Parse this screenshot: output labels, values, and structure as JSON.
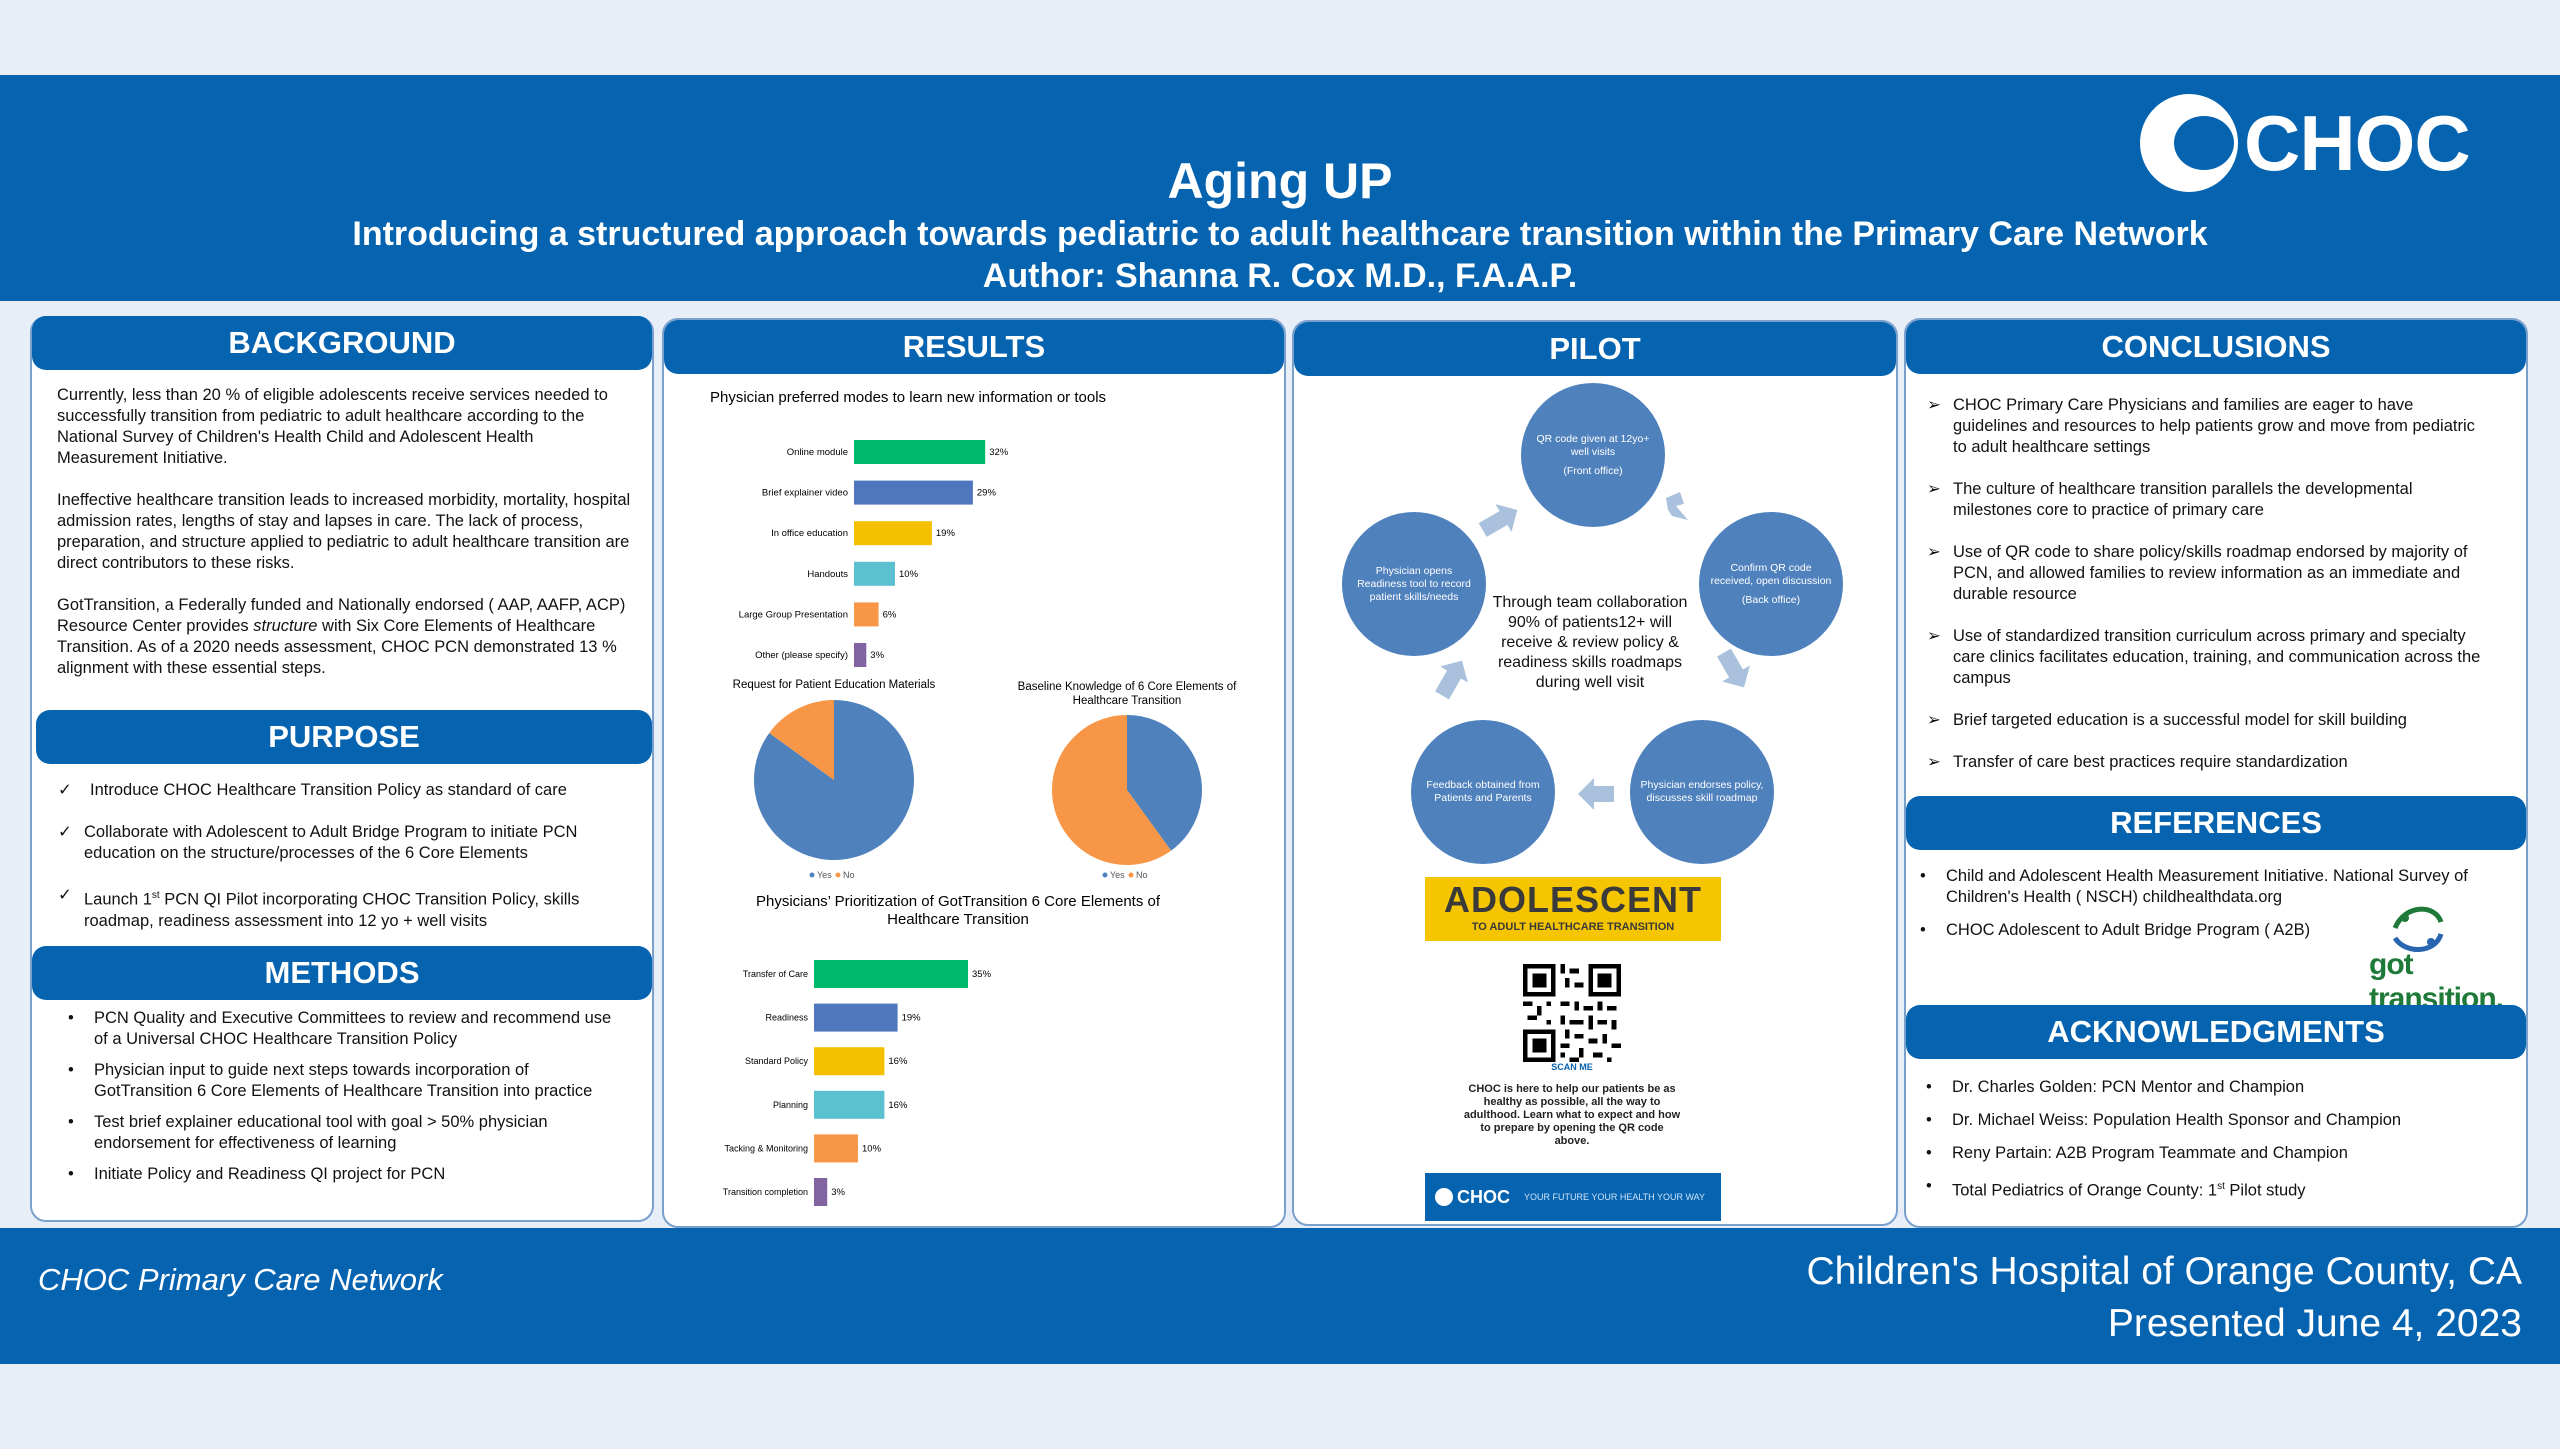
{
  "header": {
    "title": "Aging UP",
    "subtitle": "Introducing a structured approach towards pediatric to adult healthcare transition within the Primary Care Network",
    "author": "Author: Shanna R. Cox M.D., F.A.A.P.",
    "logo_text": "CHOC"
  },
  "colors": {
    "primary_blue": "#0563b0",
    "green": "#00b96b",
    "blue": "#4f77be",
    "gold": "#f5c000",
    "teal": "#5bc0d0",
    "orange": "#f79646",
    "purple": "#8064a2"
  },
  "background": {
    "heading": "BACKGROUND",
    "p1": "Currently, less than 20 % of eligible adolescents receive services needed to successfully transition from pediatric to adult healthcare according to the National Survey of Children's Health Child and Adolescent Health Measurement Initiative.",
    "p2": "Ineffective healthcare transition leads to increased morbidity, mortality, hospital admission rates, lengths of stay and lapses in care.  The lack of process, preparation, and structure applied to pediatric to adult healthcare transition are direct contributors to these risks.",
    "p3_a": "GotTransition, a Federally funded and Nationally endorsed ( AAP, AAFP, ACP) Resource Center provides ",
    "p3_em": "structure",
    "p3_b": " with Six Core Elements of Healthcare Transition.  As of a 2020 needs assessment, CHOC PCN demonstrated 13 % alignment with these essential steps."
  },
  "purpose": {
    "heading": "PURPOSE",
    "item1": "Introduce CHOC Healthcare Transition Policy as standard of care",
    "item2": "Collaborate with Adolescent to Adult Bridge Program to initiate PCN education on the structure/processes of the 6 Core Elements",
    "item3_a": "Launch 1",
    "item3_sup": "st",
    "item3_b": " PCN QI Pilot incorporating CHOC Transition Policy, skills roadmap, readiness assessment into 12 yo + well visits"
  },
  "methods": {
    "heading": "METHODS",
    "items": [
      "PCN Quality and Executive Committees to review and recommend use of a Universal CHOC Healthcare Transition Policy",
      "Physician input to guide next steps towards incorporation of GotTransition 6 Core Elements of Healthcare Transition into practice",
      "Test brief explainer educational tool with goal > 50% physician endorsement for effectiveness of learning",
      "Initiate Policy and Readiness QI project for PCN"
    ]
  },
  "results": {
    "heading": "RESULTS"
  },
  "chart_data": [
    {
      "type": "bar",
      "orientation": "horizontal",
      "title": "Physician preferred modes to learn new information or tools",
      "categories": [
        "Online module",
        "Brief explainer video",
        "In office education",
        "Handouts",
        "Large Group Presentation",
        "Other (please specify)"
      ],
      "values": [
        32,
        29,
        19,
        10,
        6,
        3
      ],
      "value_labels": [
        "32%",
        "29%",
        "19%",
        "10%",
        "6%",
        "3%"
      ],
      "colors": [
        "#00b96b",
        "#4f77be",
        "#f5c000",
        "#5bc0d0",
        "#f79646",
        "#8064a2"
      ],
      "unit": "%"
    },
    {
      "type": "pie",
      "title": "Request for Patient Education Materials",
      "labels": [
        "Yes",
        "No"
      ],
      "values": [
        85,
        15
      ],
      "colors": [
        "#4f81bd",
        "#f79646"
      ]
    },
    {
      "type": "pie",
      "title": "Baseline Knowledge of 6 Core Elements of Healthcare Transition",
      "labels": [
        "Yes",
        "No"
      ],
      "values": [
        40,
        60
      ],
      "colors": [
        "#4f81bd",
        "#f79646"
      ]
    },
    {
      "type": "bar",
      "orientation": "horizontal",
      "title": "Physicians' Prioritization of GotTransition 6 Core Elements of Healthcare Transition",
      "categories": [
        "Transfer of Care",
        "Readiness",
        "Standard Policy",
        "Planning",
        "Tacking & Monitoring",
        "Transition completion"
      ],
      "values": [
        35,
        19,
        16,
        16,
        10,
        3
      ],
      "value_labels": [
        "35%",
        "19%",
        "16%",
        "16%",
        "10%",
        "3%"
      ],
      "colors": [
        "#00b96b",
        "#4f77be",
        "#f5c000",
        "#5bc0d0",
        "#f79646",
        "#8064a2"
      ],
      "unit": "%"
    }
  ],
  "pilot": {
    "heading": "PILOT",
    "steps": [
      {
        "text": "QR code given at 12yo+ well visits",
        "sub": "(Front office)"
      },
      {
        "text": "Confirm QR code received, open discussion",
        "sub": "(Back office)"
      },
      {
        "text": "Physician endorses policy, discusses skill roadmap",
        "sub": ""
      },
      {
        "text": "Feedback obtained from Patients and Parents",
        "sub": ""
      },
      {
        "text": "Physician opens Readiness tool to record patient skills/needs",
        "sub": ""
      }
    ],
    "center_text": "Through team collaboration 90% of patients12+ will receive & review policy & readiness skills roadmaps during well visit",
    "adolescent_title": "ADOLESCENT",
    "adolescent_sub": "TO ADULT HEALTHCARE TRANSITION",
    "scan_me": "SCAN ME",
    "qr_note": "CHOC is here to help our patients be as healthy as possible, all the way to adulthood. Learn what to expect and how to prepare by opening the QR code above.",
    "band_name": "CHOC",
    "band_tag": "YOUR FUTURE YOUR HEALTH YOUR WAY"
  },
  "conclusions": {
    "heading": "CONCLUSIONS",
    "items": [
      "CHOC Primary Care Physicians and families are eager to have guidelines and resources to help patients grow and move from pediatric to adult healthcare settings",
      "The culture of healthcare transition parallels the developmental milestones core to practice of primary care",
      "Use of QR code to share policy/skills roadmap endorsed by majority of PCN, and allowed families to review information as an immediate and durable resource",
      "Use of standardized transition curriculum across primary and specialty care clinics facilitates education, training, and communication across the campus",
      "Brief targeted education is a successful model for skill building",
      "Transfer of care best practices require standardization"
    ]
  },
  "references": {
    "heading": "REFERENCES",
    "items": [
      "Child and Adolescent Health Measurement Initiative.  National Survey of Children's Health ( NSCH) childhealthdata.org",
      "CHOC Adolescent to Adult Bridge Program ( A2B)"
    ],
    "got_logo": "got transition."
  },
  "acknowledgments": {
    "heading": "ACKNOWLEDGMENTS",
    "item1": "Dr. Charles Golden:  PCN Mentor and Champion",
    "item2": "Dr. Michael Weiss: Population Health Sponsor and Champion",
    "item3": "Reny Partain: A2B Program Teammate and Champion",
    "item4_a": "Total Pediatrics of Orange County: 1",
    "item4_sup": "st",
    "item4_b": " Pilot study"
  },
  "footer": {
    "left": "CHOC Primary Care Network",
    "right1": "Children's Hospital of Orange County, CA",
    "right2": "Presented June 4, 2023"
  }
}
